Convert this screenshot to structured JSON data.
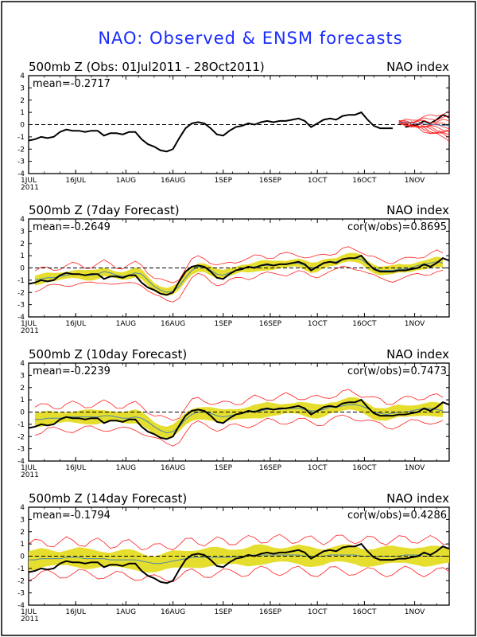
{
  "title": "NAO: Observed & ENSM forecasts",
  "colors": {
    "observed": "#000000",
    "spread_band": "#e6de2e",
    "ensemble_range": "#ff2020",
    "ensemble_mean": "#4a86b0",
    "title": "#1a2cff"
  },
  "x_ticks": [
    "1JUL",
    "16JUL",
    "1AUG",
    "16AUG",
    "1SEP",
    "16SEP",
    "1OCT",
    "16OCT",
    "1NOV"
  ],
  "x_year": "2011",
  "chart_data": [
    {
      "type": "line",
      "panel_title": "500mb Z (Obs: 01Jul2011 - 28Oct2011)",
      "right_label": "NAO index",
      "mean_label": "mean=-0.2717",
      "cor_label": "",
      "x_range_days": [
        0,
        134
      ],
      "ylim": [
        -4,
        4
      ],
      "y_ticks": [
        -4,
        -3,
        -2,
        -1,
        0,
        1,
        2,
        3,
        4
      ],
      "observed": {
        "day_step": 2,
        "start_day": 0,
        "values": [
          -1.3,
          -1.2,
          -1.0,
          -1.1,
          -1.0,
          -0.6,
          -0.4,
          -0.5,
          -0.5,
          -0.6,
          -0.5,
          -0.5,
          -0.9,
          -0.7,
          -0.7,
          -0.8,
          -0.6,
          -0.6,
          -1.2,
          -1.6,
          -1.8,
          -2.1,
          -2.2,
          -2.0,
          -1.1,
          -0.3,
          0.1,
          0.2,
          0.1,
          -0.3,
          -0.8,
          -0.9,
          -0.5,
          -0.2,
          -0.1,
          0.1,
          0.0,
          0.2,
          0.3,
          0.2,
          0.3,
          0.3,
          0.4,
          0.5,
          0.3,
          -0.2,
          0.1,
          0.4,
          0.5,
          0.4,
          0.7,
          0.8,
          0.8,
          1.0,
          0.4,
          -0.1,
          -0.3,
          -0.3,
          -0.3,
          null,
          -0.2,
          -0.1,
          0.0,
          0.3,
          0.1,
          0.4,
          0.8,
          0.6
        ]
      },
      "forecast_plume": {
        "start_day": 118,
        "end_day": 134,
        "start_value": 0.2,
        "end_values": [
          1.0,
          0.6,
          0.3,
          0.0,
          -0.2,
          -0.4,
          -0.6,
          -0.7,
          -0.9,
          -1.0,
          -1.2
        ],
        "mean_end": -0.1
      }
    },
    {
      "type": "line",
      "panel_title": "500mb Z (7day Forecast)",
      "right_label": "NAO index",
      "mean_label": "mean=-0.2649",
      "cor_label": "cor(w/obs)=0.8695",
      "x_range_days": [
        0,
        134
      ],
      "ylim": [
        -4,
        4
      ],
      "y_ticks": [
        -4,
        -3,
        -2,
        -1,
        0,
        1,
        2,
        3,
        4
      ],
      "observed": {
        "day_step": 2,
        "start_day": 0,
        "values": [
          -1.3,
          -1.2,
          -1.0,
          -1.1,
          -1.0,
          -0.6,
          -0.4,
          -0.5,
          -0.5,
          -0.6,
          -0.5,
          -0.5,
          -0.9,
          -0.7,
          -0.7,
          -0.8,
          -0.6,
          -0.6,
          -1.2,
          -1.6,
          -1.8,
          -2.1,
          -2.2,
          -2.0,
          -1.1,
          -0.3,
          0.1,
          0.2,
          0.1,
          -0.3,
          -0.8,
          -0.9,
          -0.5,
          -0.2,
          -0.1,
          0.1,
          0.0,
          0.2,
          0.3,
          0.2,
          0.3,
          0.3,
          0.4,
          0.5,
          0.3,
          -0.2,
          0.1,
          0.4,
          0.5,
          0.4,
          0.7,
          0.8,
          0.8,
          1.0,
          0.4,
          -0.1,
          -0.3,
          -0.3,
          -0.3,
          -0.2,
          -0.2,
          -0.1,
          0.0,
          0.3,
          0.1,
          0.4,
          0.8,
          0.6
        ]
      },
      "ensemble": {
        "day_step": 2,
        "start_day": 2,
        "mean": [
          -1.0,
          -0.9,
          -0.8,
          -0.8,
          -0.7,
          -0.6,
          -0.5,
          -0.5,
          -0.6,
          -0.6,
          -0.5,
          -0.3,
          -0.4,
          -0.6,
          -0.7,
          -0.6,
          -0.4,
          -0.5,
          -1.0,
          -1.5,
          -1.8,
          -2.0,
          -1.9,
          -1.5,
          -0.8,
          -0.2,
          0.1,
          0.1,
          -0.2,
          -0.5,
          -0.6,
          -0.4,
          -0.2,
          0.0,
          0.0,
          0.1,
          0.2,
          0.2,
          0.2,
          0.3,
          0.3,
          0.4,
          0.4,
          0.2,
          0.0,
          0.1,
          0.4,
          0.5,
          0.5,
          0.7,
          0.8,
          0.8,
          0.7,
          0.3,
          0.0,
          -0.2,
          -0.2,
          -0.2,
          -0.1,
          -0.1,
          0.0,
          0.2,
          0.3,
          0.4,
          0.5,
          0.4
        ],
        "band_halfwidth": 0.35,
        "range_halfwidth": 0.75
      }
    },
    {
      "type": "line",
      "panel_title": "500mb Z (10day Forecast)",
      "right_label": "NAO index",
      "mean_label": "mean=-0.2239",
      "cor_label": "cor(w/obs)=0.7473",
      "x_range_days": [
        0,
        134
      ],
      "ylim": [
        -4,
        4
      ],
      "y_ticks": [
        -4,
        -3,
        -2,
        -1,
        0,
        1,
        2,
        3,
        4
      ],
      "observed": {
        "day_step": 2,
        "start_day": 0,
        "values": [
          -1.3,
          -1.2,
          -1.0,
          -1.1,
          -1.0,
          -0.6,
          -0.4,
          -0.5,
          -0.5,
          -0.6,
          -0.5,
          -0.5,
          -0.9,
          -0.7,
          -0.7,
          -0.8,
          -0.6,
          -0.6,
          -1.2,
          -1.6,
          -1.8,
          -2.1,
          -2.2,
          -2.0,
          -1.1,
          -0.3,
          0.1,
          0.2,
          0.1,
          -0.3,
          -0.8,
          -0.9,
          -0.5,
          -0.2,
          -0.1,
          0.1,
          0.0,
          0.2,
          0.3,
          0.2,
          0.3,
          0.3,
          0.4,
          0.5,
          0.3,
          -0.2,
          0.1,
          0.4,
          0.5,
          0.4,
          0.7,
          0.8,
          0.8,
          1.0,
          0.4,
          -0.1,
          -0.3,
          -0.3,
          -0.3,
          -0.2,
          -0.2,
          -0.1,
          0.0,
          0.3,
          0.1,
          0.4,
          0.8,
          0.6
        ]
      },
      "ensemble": {
        "day_step": 2,
        "start_day": 2,
        "mean": [
          -0.6,
          -0.6,
          -0.5,
          -0.5,
          -0.5,
          -0.4,
          -0.4,
          -0.4,
          -0.4,
          -0.4,
          -0.4,
          -0.3,
          -0.3,
          -0.4,
          -0.5,
          -0.5,
          -0.4,
          -0.5,
          -0.8,
          -1.2,
          -1.5,
          -1.7,
          -1.6,
          -1.2,
          -0.6,
          -0.2,
          0.0,
          0.0,
          -0.1,
          -0.3,
          -0.4,
          -0.3,
          -0.2,
          -0.1,
          0.0,
          0.1,
          0.1,
          0.2,
          0.2,
          0.2,
          0.3,
          0.3,
          0.3,
          0.2,
          0.1,
          0.1,
          0.2,
          0.4,
          0.4,
          0.5,
          0.6,
          0.6,
          0.5,
          0.3,
          0.0,
          -0.1,
          -0.2,
          -0.1,
          0.0,
          0.0,
          0.1,
          0.2,
          0.3,
          0.3,
          0.2,
          0.1
        ],
        "band_halfwidth": 0.5,
        "range_halfwidth": 1.0
      }
    },
    {
      "type": "line",
      "panel_title": "500mb Z (14day Forecast)",
      "right_label": "NAO index",
      "mean_label": "mean=-0.1794",
      "cor_label": "cor(w/obs)=0.4286",
      "x_range_days": [
        0,
        134
      ],
      "ylim": [
        -4,
        4
      ],
      "y_ticks": [
        -4,
        -3,
        -2,
        -1,
        0,
        1,
        2,
        3,
        4
      ],
      "observed": {
        "day_step": 2,
        "start_day": 0,
        "values": [
          -1.3,
          -1.2,
          -1.0,
          -1.1,
          -1.0,
          -0.6,
          -0.4,
          -0.5,
          -0.5,
          -0.6,
          -0.5,
          -0.5,
          -0.9,
          -0.7,
          -0.7,
          -0.8,
          -0.6,
          -0.6,
          -1.2,
          -1.6,
          -1.8,
          -2.1,
          -2.2,
          -2.0,
          -1.1,
          -0.3,
          0.1,
          0.2,
          0.1,
          -0.3,
          -0.8,
          -0.9,
          -0.5,
          -0.2,
          -0.1,
          0.1,
          0.0,
          0.2,
          0.3,
          0.2,
          0.3,
          0.3,
          0.4,
          0.5,
          0.3,
          -0.2,
          0.1,
          0.4,
          0.5,
          0.4,
          0.7,
          0.8,
          0.8,
          1.0,
          0.4,
          -0.1,
          -0.3,
          -0.3,
          -0.3,
          -0.2,
          -0.2,
          -0.1,
          0.0,
          0.3,
          0.1,
          0.4,
          0.8,
          0.6
        ]
      },
      "ensemble": {
        "day_step": 2,
        "start_day": 0,
        "mean": [
          -0.3,
          -0.3,
          -0.2,
          -0.2,
          -0.2,
          -0.2,
          -0.1,
          -0.1,
          -0.1,
          -0.2,
          -0.2,
          -0.2,
          -0.2,
          -0.3,
          -0.3,
          -0.3,
          -0.3,
          -0.3,
          -0.4,
          -0.5,
          -0.6,
          -0.6,
          -0.5,
          -0.4,
          -0.3,
          -0.2,
          -0.1,
          -0.1,
          -0.1,
          -0.1,
          -0.1,
          -0.1,
          -0.1,
          0.0,
          0.0,
          0.0,
          0.1,
          0.1,
          0.1,
          0.1,
          0.1,
          0.1,
          0.1,
          0.1,
          0.0,
          0.0,
          0.0,
          0.0,
          0.1,
          0.1,
          0.1,
          0.1,
          0.1,
          0.0,
          0.0,
          0.0,
          0.0,
          0.0,
          0.0,
          0.0,
          0.1,
          0.1,
          0.1,
          0.0,
          0.0,
          0.0,
          0.0,
          0.0
        ],
        "band_halfwidth": 0.7,
        "range_halfwidth": 1.3
      }
    }
  ]
}
